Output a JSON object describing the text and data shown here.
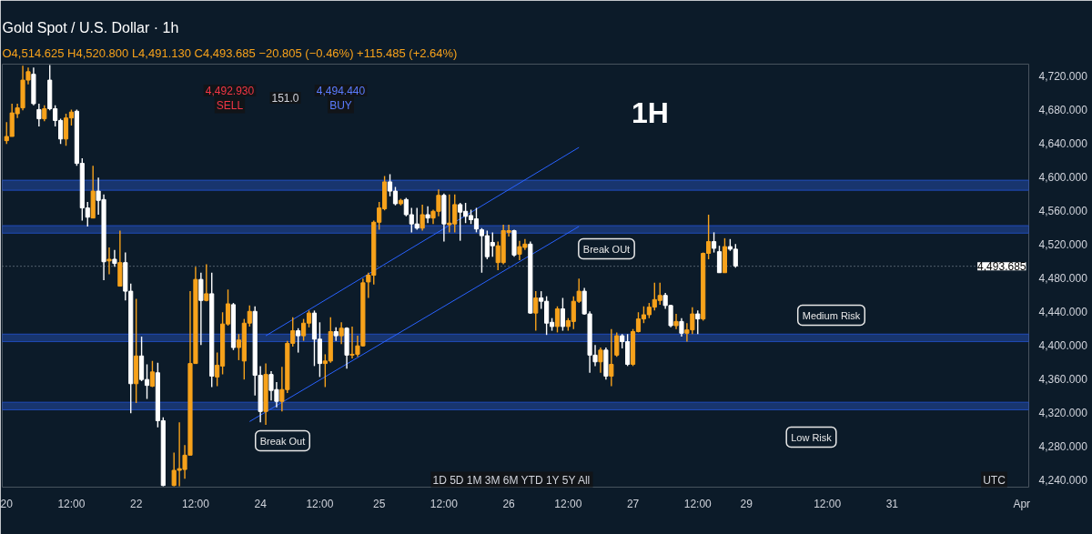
{
  "chart_data": {
    "type": "candlestick",
    "title": "Gold Spot / U.S. Dollar · 1h",
    "subtitle": "O4,514.625 H4,520.800 L4,491.130 C4,493.685 −20.805 (−0.46%) +115.485 (+2.64%)",
    "categories": [
      "20",
      null,
      null,
      null,
      null,
      null,
      null,
      null,
      null,
      null,
      null,
      null,
      "12:00",
      null,
      null,
      null,
      null,
      null,
      null,
      null,
      null,
      null,
      null,
      null,
      "22",
      null,
      null,
      null,
      null,
      null,
      null,
      null,
      null,
      null,
      null,
      "12:00",
      null,
      null,
      null,
      null,
      null,
      null,
      null,
      null,
      null,
      null,
      null,
      "24",
      null,
      null,
      null,
      null,
      null,
      null,
      null,
      null,
      null,
      null,
      "12:00",
      null,
      null,
      null,
      null,
      null,
      null,
      null,
      null,
      null,
      null,
      "25",
      null,
      null,
      null,
      null,
      null,
      null,
      null,
      null,
      null,
      null,
      null,
      "12:00",
      null,
      null,
      null,
      null,
      null,
      null,
      null,
      null,
      null,
      null,
      null,
      "26",
      null,
      null,
      null,
      null,
      null,
      null,
      null,
      null,
      null,
      null,
      "12:00",
      null,
      null,
      null,
      null,
      null,
      null,
      null,
      null,
      null,
      null,
      null,
      "27",
      null,
      null,
      null,
      null,
      null,
      null,
      null,
      null,
      null,
      null,
      null,
      "12:00",
      null,
      null,
      null,
      null,
      null,
      null,
      null,
      null,
      "29",
      null,
      null,
      null,
      null,
      null,
      null,
      null,
      null,
      null,
      null,
      null,
      null,
      null,
      null,
      "12:00",
      null,
      null,
      null,
      null,
      null,
      null,
      null,
      null,
      null,
      null,
      null,
      "31",
      null,
      null,
      null,
      null,
      null,
      null,
      null,
      null,
      null,
      null,
      null,
      null,
      null,
      null,
      null,
      null,
      null,
      null,
      null,
      null,
      null,
      null,
      null,
      "Apr",
      null
    ],
    "ohlc": [
      [
        4643,
        4665,
        4639,
        4648
      ],
      [
        4648,
        4687,
        4648,
        4676
      ],
      [
        4675,
        4687,
        4670,
        4682
      ],
      [
        4682,
        4732,
        4679,
        4715
      ],
      [
        4715,
        4730,
        4710,
        4725
      ],
      [
        4722,
        4730,
        4685,
        4687
      ],
      [
        4680,
        4687,
        4660,
        4669
      ],
      [
        4669,
        4685,
        4666,
        4681
      ],
      [
        4715,
        4733,
        4679,
        4681
      ],
      [
        4681,
        4685,
        4660,
        4667
      ],
      [
        4667,
        4669,
        4639,
        4645
      ],
      [
        4645,
        4675,
        4637,
        4670
      ],
      [
        4670,
        4680,
        4661,
        4677
      ],
      [
        4678,
        4680,
        4613,
        4616
      ],
      [
        4616,
        4622,
        4548,
        4563
      ],
      [
        4563,
        4570,
        4541,
        4552
      ],
      [
        4551,
        4613,
        4551,
        4583
      ],
      [
        4583,
        4599,
        4555,
        4572
      ],
      [
        4573,
        4579,
        4477,
        4499
      ],
      [
        4500,
        4516,
        4484,
        4502
      ],
      [
        4502,
        4513,
        4493,
        4497
      ],
      [
        4470,
        4536,
        4470,
        4498
      ],
      [
        4498,
        4510,
        4453,
        4464
      ],
      [
        4464,
        4473,
        4319,
        4354
      ],
      [
        4354,
        4455,
        4331,
        4387
      ],
      [
        4387,
        4410,
        4357,
        4359
      ],
      [
        4359,
        4377,
        4336,
        4352
      ],
      [
        4351,
        4381,
        4350,
        4368
      ],
      [
        4367,
        4379,
        4302,
        4310
      ],
      [
        4310,
        4314,
        4232,
        4233
      ],
      null,
      [
        4233,
        4272,
        4232,
        4251
      ],
      [
        4251,
        4308,
        4232,
        4253
      ],
      [
        4252,
        4281,
        4241,
        4269
      ],
      [
        4269,
        4464,
        4269,
        4378
      ],
      [
        4378,
        4493,
        4378,
        4478
      ],
      [
        4478,
        4486,
        4400,
        4453
      ],
      [
        4453,
        4496,
        4452,
        4461
      ],
      [
        4461,
        4486,
        4350,
        4363
      ],
      [
        4362,
        4391,
        4351,
        4376
      ],
      [
        4375,
        4439,
        4365,
        4425
      ],
      [
        4425,
        4466,
        4423,
        4449
      ],
      [
        4448,
        4450,
        4394,
        4397
      ],
      [
        4397,
        4413,
        4382,
        4406
      ],
      [
        4381,
        4431,
        4359,
        4426
      ],
      [
        4426,
        4447,
        4422,
        4440
      ],
      [
        4440,
        4446,
        4340,
        4364
      ],
      [
        4364,
        4375,
        4308,
        4321
      ],
      [
        4321,
        4378,
        4305,
        4365
      ],
      [
        4365,
        4369,
        4334,
        4346
      ],
      [
        4347,
        4356,
        4326,
        4333
      ],
      [
        4333,
        4374,
        4321,
        4347
      ],
      [
        4347,
        4405,
        4343,
        4402
      ],
      [
        4402,
        4433,
        4398,
        4417
      ],
      [
        4417,
        4420,
        4391,
        4411
      ],
      [
        4411,
        4431,
        4405,
        4426
      ],
      [
        4426,
        4441,
        4421,
        4438
      ],
      [
        4438,
        4441,
        4375,
        4407
      ],
      [
        4407,
        4427,
        4362,
        4378
      ],
      [
        4378,
        4389,
        4350,
        4381
      ],
      [
        4381,
        4433,
        4379,
        4416
      ],
      [
        4416,
        4421,
        4405,
        4411
      ],
      [
        4411,
        4427,
        4401,
        4420
      ],
      [
        4420,
        4421,
        4372,
        4388
      ],
      [
        4388,
        4422,
        4384,
        4389
      ],
      [
        4389,
        4411,
        4386,
        4399
      ],
      [
        4399,
        4479,
        4398,
        4474
      ],
      [
        4475,
        4486,
        4456,
        4483
      ],
      [
        4483,
        4548,
        4472,
        4546
      ],
      [
        4546,
        4570,
        4537,
        4563
      ],
      [
        4562,
        4601,
        4560,
        4594
      ],
      [
        4594,
        4603,
        4577,
        4583
      ],
      [
        4583,
        4588,
        4566,
        4568
      ],
      [
        4568,
        4574,
        4566,
        4572
      ],
      [
        4573,
        4575,
        4553,
        4555
      ],
      [
        4555,
        4563,
        4534,
        4544
      ],
      [
        4544,
        4563,
        4537,
        4539
      ],
      [
        4539,
        4567,
        4536,
        4555
      ],
      [
        4555,
        4565,
        4545,
        4551
      ],
      [
        4551,
        4561,
        4544,
        4559
      ],
      [
        4559,
        4585,
        4553,
        4578
      ],
      [
        4578,
        4580,
        4523,
        4544
      ],
      [
        4543,
        4579,
        4534,
        4545
      ],
      [
        4544,
        4579,
        4534,
        4567
      ],
      [
        4567,
        4569,
        4524,
        4558
      ],
      [
        4559,
        4569,
        4545,
        4553
      ],
      [
        4554,
        4561,
        4544,
        4549
      ],
      [
        4550,
        4563,
        4534,
        4538
      ],
      [
        4537,
        4539,
        4486,
        4530
      ],
      [
        4530,
        4536,
        4502,
        4505
      ],
      [
        4522,
        4534,
        4505,
        4518
      ],
      [
        4498,
        4523,
        4489,
        4518
      ],
      [
        4498,
        4543,
        4496,
        4536
      ],
      [
        4534,
        4543,
        4529,
        4536
      ],
      [
        4536,
        4537,
        4505,
        4507
      ],
      [
        4508,
        4524,
        4501,
        4517
      ],
      [
        4516,
        4526,
        4513,
        4520
      ],
      [
        4520,
        4523,
        4437,
        4438
      ],
      [
        4438,
        4464,
        4417,
        4456
      ],
      [
        4456,
        4464,
        4443,
        4452
      ],
      [
        4452,
        4458,
        4412,
        4426
      ],
      [
        4427,
        4432,
        4417,
        4422
      ],
      [
        4422,
        4446,
        4415,
        4443
      ],
      [
        4443,
        4456,
        4417,
        4422
      ],
      [
        4422,
        4432,
        4417,
        4429
      ],
      [
        4428,
        4458,
        4419,
        4452
      ],
      [
        4452,
        4479,
        4450,
        4464
      ],
      [
        4464,
        4468,
        4436,
        4437
      ],
      [
        4437,
        4440,
        4367,
        4388
      ],
      [
        4388,
        4400,
        4375,
        4380
      ],
      [
        4380,
        4397,
        4367,
        4394
      ],
      [
        4394,
        4397,
        4359,
        4363
      ],
      [
        4363,
        4419,
        4351,
        4377
      ],
      [
        4388,
        4415,
        4386,
        4411
      ],
      [
        4411,
        4413,
        4396,
        4404
      ],
      [
        4404,
        4413,
        4375,
        4377
      ],
      [
        4377,
        4419,
        4375,
        4416
      ],
      [
        4416,
        4439,
        4415,
        4431
      ],
      [
        4431,
        4446,
        4426,
        4436
      ],
      [
        4436,
        4450,
        4432,
        4445
      ],
      [
        4445,
        4474,
        4441,
        4454
      ],
      [
        4453,
        4474,
        4448,
        4459
      ],
      [
        4459,
        4462,
        4443,
        4447
      ],
      [
        4447,
        4448,
        4421,
        4423
      ],
      [
        4423,
        4437,
        4419,
        4428
      ],
      [
        4428,
        4432,
        4410,
        4414
      ],
      [
        4414,
        4426,
        4404,
        4418
      ],
      [
        4418,
        4445,
        4413,
        4437
      ],
      [
        4437,
        4441,
        4413,
        4431
      ],
      [
        4431,
        4510,
        4429,
        4509
      ],
      [
        4509,
        4555,
        4502,
        4523
      ],
      [
        4523,
        4534,
        4510,
        4515
      ],
      [
        4511,
        4518,
        4486,
        4486
      ],
      [
        4486,
        4527,
        4486,
        4517
      ],
      [
        4517,
        4526,
        4512,
        4514
      ],
      [
        4514,
        4520,
        4492,
        4494
      ],
      null,
      null,
      null,
      null,
      null,
      null,
      null,
      null,
      null,
      null,
      null,
      null,
      null,
      null,
      null,
      null,
      null,
      null,
      null,
      null,
      null,
      null,
      null,
      null,
      null,
      null,
      null,
      null,
      null,
      null,
      null,
      null,
      null,
      null,
      null,
      null,
      null,
      null,
      null,
      null,
      null,
      null,
      null,
      null,
      null,
      null,
      null,
      null,
      null,
      null,
      null,
      null,
      null,
      null
    ],
    "series": [
      {
        "type": "line",
        "color": "#2962ff",
        "values": [
          null,
          null,
          null,
          null,
          null,
          null,
          null,
          null,
          null,
          null,
          null,
          null,
          null,
          null,
          null,
          null,
          null,
          null,
          null,
          null,
          null,
          null,
          null,
          null,
          null,
          null,
          null,
          null,
          null,
          null,
          null,
          null,
          null,
          null,
          null,
          null,
          null,
          null,
          null,
          null,
          null,
          null,
          null,
          null,
          null,
          null,
          null,
          null,
          4411,
          null,
          null,
          null,
          null,
          null,
          null,
          null,
          null,
          null,
          null,
          null,
          null,
          null,
          null,
          null,
          null,
          null,
          null,
          null,
          null,
          null,
          null,
          null,
          null,
          null,
          null,
          null,
          null,
          null,
          null,
          null,
          null,
          null,
          null,
          null,
          null,
          null,
          null,
          null,
          null,
          null,
          null,
          null,
          null,
          null,
          null,
          null,
          null,
          null,
          null,
          null,
          null,
          null,
          null,
          null,
          null,
          null,
          4635,
          null,
          null,
          null,
          null,
          null,
          null,
          null,
          null,
          null,
          null,
          null,
          null,
          null,
          null,
          null,
          null,
          null,
          null,
          null,
          null,
          null,
          null,
          null,
          null,
          null,
          null,
          null,
          null,
          null,
          null,
          null,
          null,
          null,
          null,
          null,
          null,
          null,
          null,
          null,
          null,
          null,
          null,
          null,
          null,
          null,
          null,
          null,
          null,
          null,
          null,
          null,
          null,
          null,
          null,
          null,
          null,
          null,
          null,
          null,
          null,
          null,
          null,
          null,
          null,
          null,
          null,
          null,
          null,
          null,
          null,
          null,
          null,
          null,
          null,
          null,
          null,
          null,
          null,
          null,
          null,
          null,
          null,
          null
        ]
      },
      {
        "type": "line",
        "color": "#2962ff",
        "values": [
          null,
          null,
          null,
          null,
          null,
          null,
          null,
          null,
          null,
          null,
          null,
          null,
          null,
          null,
          null,
          null,
          null,
          null,
          null,
          null,
          null,
          null,
          null,
          null,
          null,
          null,
          null,
          null,
          null,
          null,
          null,
          null,
          null,
          null,
          null,
          null,
          null,
          null,
          null,
          null,
          null,
          null,
          null,
          null,
          null,
          4309,
          null,
          null,
          null,
          null,
          null,
          null,
          null,
          null,
          null,
          null,
          null,
          null,
          null,
          null,
          null,
          null,
          null,
          null,
          null,
          null,
          null,
          null,
          null,
          null,
          null,
          null,
          null,
          null,
          null,
          null,
          null,
          null,
          null,
          null,
          null,
          null,
          null,
          null,
          null,
          null,
          null,
          null,
          null,
          null,
          null,
          null,
          null,
          null,
          null,
          null,
          null,
          null,
          null,
          null,
          null,
          null,
          null,
          null,
          null,
          null,
          4541,
          null,
          null,
          null,
          null,
          null,
          null,
          null,
          null,
          null,
          null,
          null,
          null,
          null,
          null,
          null,
          null,
          null,
          null,
          null,
          null,
          null,
          null,
          null,
          null,
          null,
          null,
          null,
          null,
          null,
          null,
          null,
          null,
          null,
          null,
          null,
          null,
          null,
          null,
          null,
          null,
          null,
          null,
          null,
          null,
          null,
          null,
          null,
          null,
          null,
          null,
          null,
          null,
          null,
          null,
          null,
          null,
          null,
          null,
          null,
          null,
          null,
          null,
          null,
          null,
          null,
          null,
          null,
          null,
          null,
          null,
          null,
          null,
          null,
          null,
          null,
          null,
          null,
          null,
          null,
          null,
          null,
          null,
          null
        ]
      }
    ],
    "ylim": [
      4231,
      4734
    ],
    "yticks": [
      {
        "value": 4240,
        "label": "4,240.000"
      },
      {
        "value": 4280,
        "label": "4,280.000"
      },
      {
        "value": 4320,
        "label": "4,320.000"
      },
      {
        "value": 4360,
        "label": "4,360.000"
      },
      {
        "value": 4400,
        "label": "4,400.000"
      },
      {
        "value": 4440,
        "label": "4,440.000"
      },
      {
        "value": 4480,
        "label": "4,480.000"
      },
      {
        "value": 4520,
        "label": "4,520.000"
      },
      {
        "value": 4560,
        "label": "4,560.000"
      },
      {
        "value": 4600,
        "label": "4,600.000"
      },
      {
        "value": 4640,
        "label": "4,640.000"
      },
      {
        "value": 4680,
        "label": "4,680.000"
      },
      {
        "value": 4720,
        "label": "4,720.000"
      }
    ],
    "ref_lines": [
      {
        "axis": "y",
        "value": 4493.685,
        "label": "4,493.685",
        "color": "#9aa4b0",
        "line_style": "dotted"
      }
    ],
    "bands": [
      {
        "axis": "y",
        "from": 4584,
        "to": 4596,
        "color": "#1c3f85"
      },
      {
        "axis": "y",
        "from": 4533,
        "to": 4542,
        "color": "#1c3f85"
      },
      {
        "axis": "y",
        "from": 4404,
        "to": 4413,
        "color": "#1c3f85"
      },
      {
        "axis": "y",
        "from": 4323,
        "to": 4332,
        "color": "#1c3f85"
      }
    ],
    "annotations": [
      "1H",
      "Break Out",
      "Break OUt",
      "Medium Risk",
      "Low Risk",
      "4,492.930",
      "SELL",
      "151.0",
      "4,494.440",
      "BUY",
      "1D 5D 1M 3M 6M YTD 1Y 5Y All",
      "UTC"
    ]
  }
}
